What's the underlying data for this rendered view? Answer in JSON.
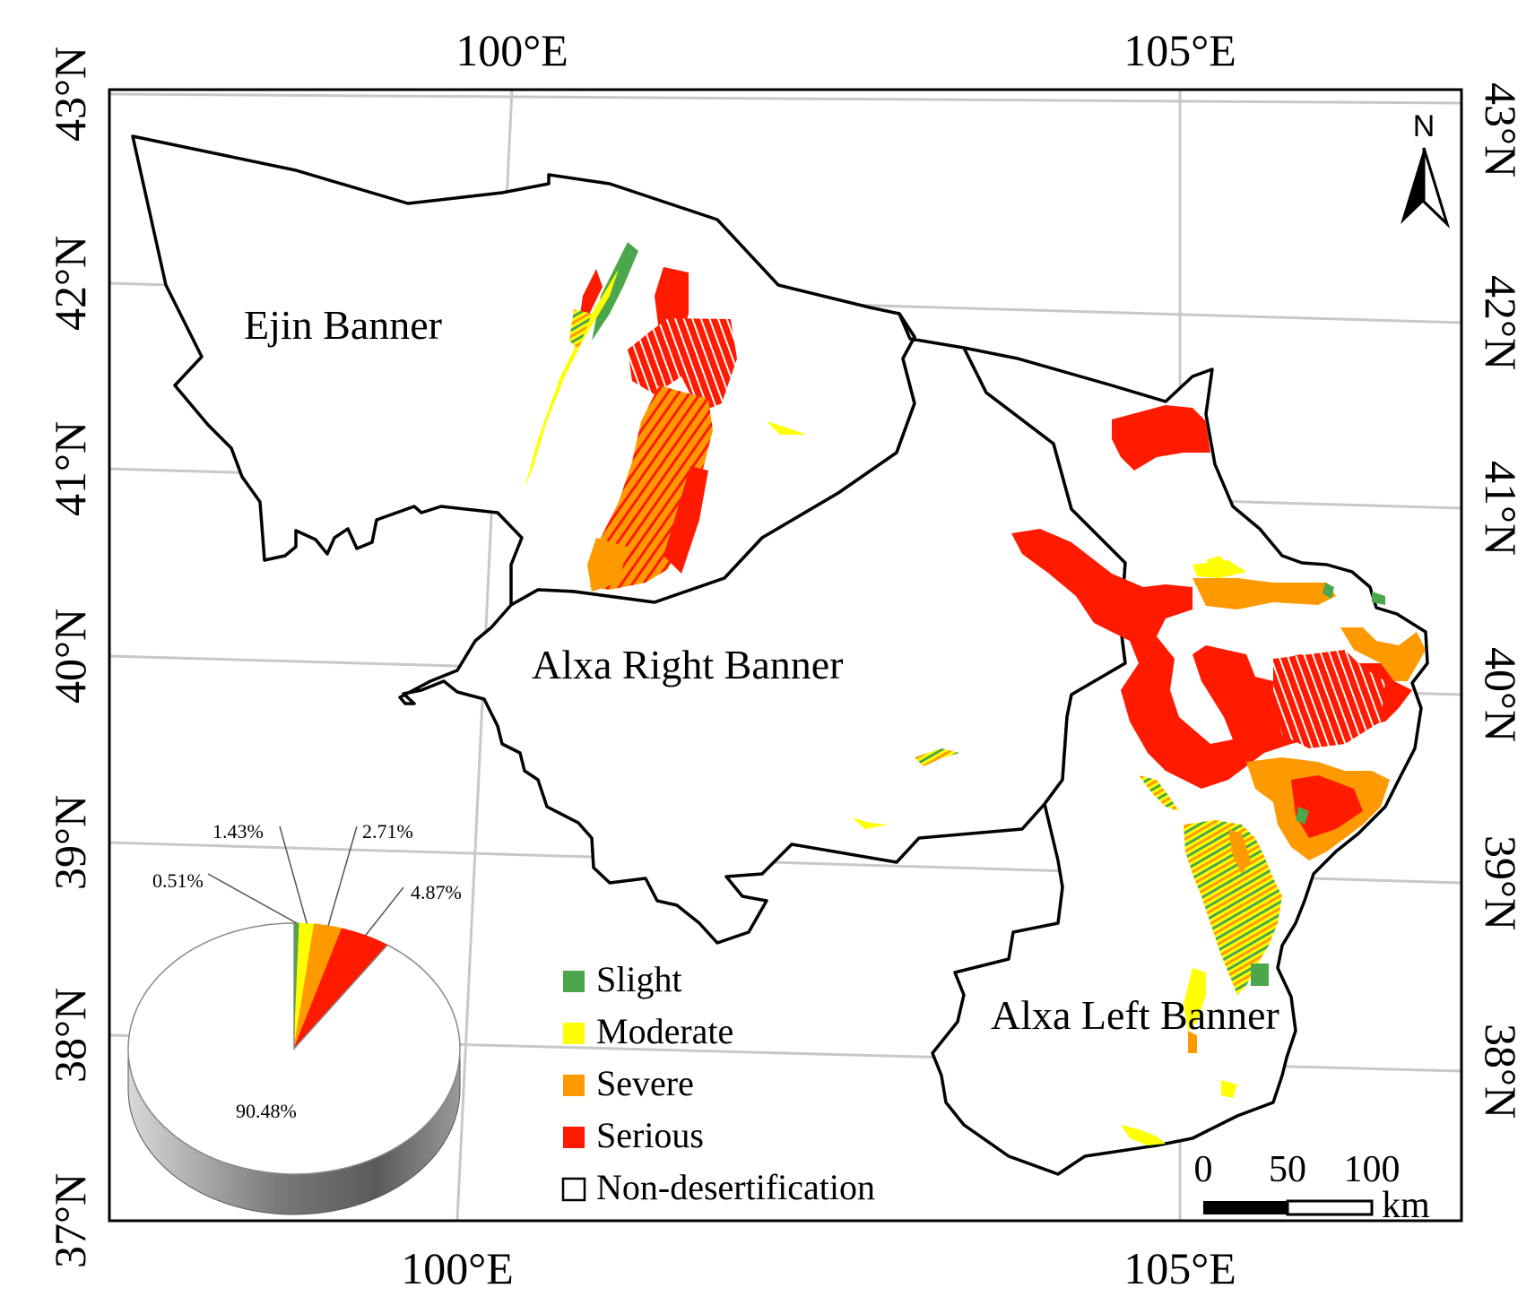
{
  "colors": {
    "slight": "#4ca64c",
    "moderate": "#ffff00",
    "severe": "#ff9900",
    "serious": "#ff1a00",
    "non_desertification": "#ffffff",
    "grid": "#c8c8c8"
  },
  "graticule": {
    "top_lon": [
      "100°E",
      "105°E"
    ],
    "bottom_lon": [
      "100°E",
      "105°E"
    ],
    "left_lat": [
      "43°N",
      "42°N",
      "41°N",
      "40°N",
      "39°N",
      "38°N",
      "37°N"
    ],
    "right_lat": [
      "43°N",
      "42°N",
      "41°N",
      "40°N",
      "39°N",
      "38°N"
    ]
  },
  "regions": {
    "ejin": "Ejin Banner",
    "alxa_right": "Alxa Right Banner",
    "alxa_left": "Alxa Left Banner"
  },
  "legend": {
    "items": [
      {
        "key": "slight",
        "label": "Slight",
        "color": "#4ca64c"
      },
      {
        "key": "moderate",
        "label": "Moderate",
        "color": "#ffff00"
      },
      {
        "key": "severe",
        "label": "Severe",
        "color": "#ff9900"
      },
      {
        "key": "serious",
        "label": "Serious",
        "color": "#ff1a00"
      },
      {
        "key": "non",
        "label": "Non-desertification",
        "color": "#ffffff"
      }
    ]
  },
  "pie": {
    "slices": [
      {
        "key": "slight",
        "label": "0.51%",
        "value": 0.51,
        "color": "#4ca64c"
      },
      {
        "key": "moderate",
        "label": "1.43%",
        "value": 1.43,
        "color": "#ffff00"
      },
      {
        "key": "severe",
        "label": "2.71%",
        "value": 2.71,
        "color": "#ff9900"
      },
      {
        "key": "serious",
        "label": "4.87%",
        "value": 4.87,
        "color": "#ff1a00"
      },
      {
        "key": "non",
        "label": "90.48%",
        "value": 90.48,
        "color": "#ffffff"
      }
    ]
  },
  "scale_bar": {
    "ticks": [
      "0",
      "50",
      "100"
    ],
    "unit": "km"
  },
  "north_arrow": {
    "label": "N",
    "icon": "north-arrow-icon"
  }
}
